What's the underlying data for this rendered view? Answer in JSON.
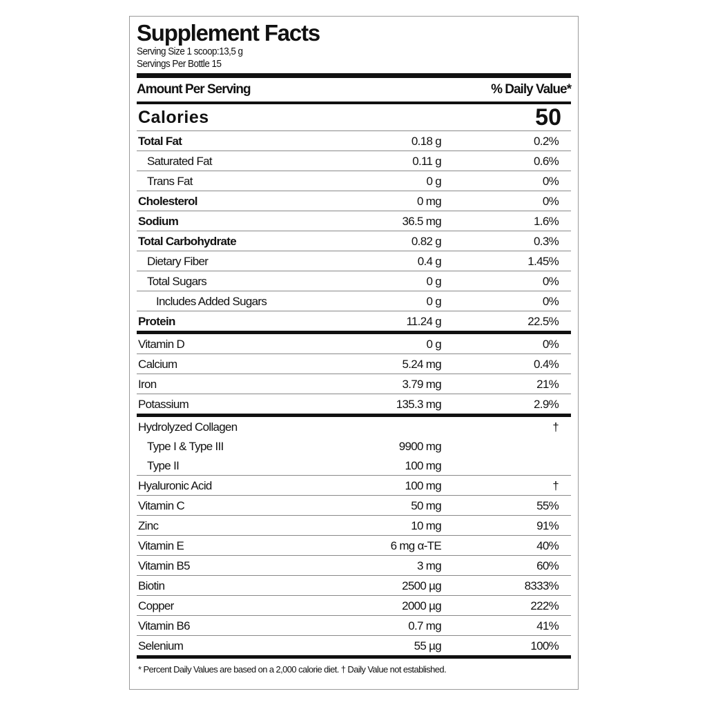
{
  "label": {
    "title": "Supplement Facts",
    "serving_size": "Serving Size 1 scoop:13,5 g",
    "servings_per": "Servings Per Bottle 15",
    "amount_header": "Amount Per Serving",
    "dv_header": "% Daily Value*",
    "calories_label": "Calories",
    "calories_value": "50",
    "sections": [
      [
        {
          "name": "Total Fat",
          "amount": "0.18 g",
          "dv": "0.2%",
          "bold": true,
          "indent": 0
        },
        {
          "name": "Saturated Fat",
          "amount": "0.11 g",
          "dv": "0.6%",
          "bold": false,
          "indent": 1
        },
        {
          "name": "Trans Fat",
          "amount": "0 g",
          "dv": "0%",
          "bold": false,
          "indent": 1
        },
        {
          "name": "Cholesterol",
          "amount": "0 mg",
          "dv": "0%",
          "bold": true,
          "indent": 0
        },
        {
          "name": "Sodium",
          "amount": "36.5 mg",
          "dv": "1.6%",
          "bold": true,
          "indent": 0
        },
        {
          "name": "Total Carbohydrate",
          "amount": "0.82 g",
          "dv": "0.3%",
          "bold": true,
          "indent": 0
        },
        {
          "name": "Dietary Fiber",
          "amount": "0.4 g",
          "dv": "1.45%",
          "bold": false,
          "indent": 1
        },
        {
          "name": "Total Sugars",
          "amount": "0 g",
          "dv": "0%",
          "bold": false,
          "indent": 1
        },
        {
          "name": "Includes Added Sugars",
          "amount": "0 g",
          "dv": "0%",
          "bold": false,
          "indent": 2
        },
        {
          "name": "Protein",
          "amount": "11.24 g",
          "dv": "22.5%",
          "bold": true,
          "indent": 0
        }
      ],
      [
        {
          "name": "Vitamin D",
          "amount": "0 g",
          "dv": "0%",
          "indent": 0
        },
        {
          "name": "Calcium",
          "amount": "5.24 mg",
          "dv": "0.4%",
          "indent": 0
        },
        {
          "name": "Iron",
          "amount": "3.79 mg",
          "dv": "21%",
          "indent": 0
        },
        {
          "name": "Potassium",
          "amount": "135.3 mg",
          "dv": "2.9%",
          "indent": 0
        }
      ],
      [
        {
          "name": "Hydrolyzed Collagen",
          "amount": "",
          "dv": "†",
          "indent": 0,
          "sub": [
            {
              "name": "Type I & Type III",
              "amount": "9900 mg",
              "dv": "",
              "indent": 1
            },
            {
              "name": "Type II",
              "amount": "100 mg",
              "dv": "",
              "indent": 1
            }
          ]
        },
        {
          "name": "Hyaluronic Acid",
          "amount": "100 mg",
          "dv": "†",
          "indent": 0
        },
        {
          "name": "Vitamin C",
          "amount": "50 mg",
          "dv": "55%",
          "indent": 0
        },
        {
          "name": "Zinc",
          "amount": "10 mg",
          "dv": "91%",
          "indent": 0
        },
        {
          "name": "Vitamin E",
          "amount": "6 mg α-TE",
          "dv": "40%",
          "indent": 0
        },
        {
          "name": "Vitamin B5",
          "amount": "3 mg",
          "dv": "60%",
          "indent": 0
        },
        {
          "name": "Biotin",
          "amount": "2500 µg",
          "dv": "8333%",
          "indent": 0
        },
        {
          "name": "Copper",
          "amount": "2000 µg",
          "dv": "222%",
          "indent": 0
        },
        {
          "name": "Vitamin B6",
          "amount": "0.7 mg",
          "dv": "41%",
          "indent": 0
        },
        {
          "name": "Selenium",
          "amount": "55 µg",
          "dv": "100%",
          "indent": 0
        }
      ]
    ],
    "footnote": "* Percent Daily Values are based on a 2,000 calorie diet.  † Daily Value not established."
  }
}
